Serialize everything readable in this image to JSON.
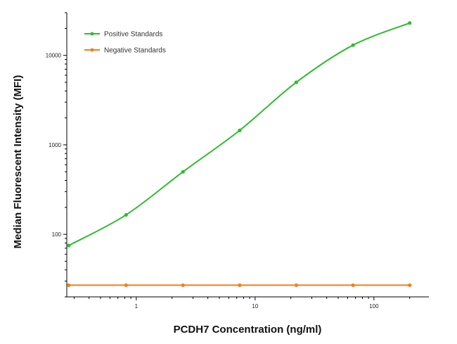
{
  "chart_data": {
    "type": "line",
    "title": "",
    "xlabel": "PCDH7 Concentration (ng/ml)",
    "ylabel": "Median  Fluorescent Intensity  (MFI)",
    "x_scale": "log",
    "y_scale": "log",
    "xlim": [
      0.26,
      290
    ],
    "ylim": [
      20,
      30000
    ],
    "x_ticks": [
      1,
      10,
      100
    ],
    "x_tick_labels": [
      "1",
      "10",
      "100"
    ],
    "y_ticks": [
      100,
      1000,
      10000
    ],
    "y_tick_labels": [
      "100",
      "1000",
      "10000"
    ],
    "grid": false,
    "legend_position": "top-left",
    "series": [
      {
        "name": "Positive Standards",
        "color": "#2ebd2e",
        "x": [
          0.27,
          0.82,
          2.47,
          7.41,
          22.2,
          66.7,
          200
        ],
        "y": [
          75,
          165,
          500,
          1450,
          5000,
          13000,
          23000
        ]
      },
      {
        "name": "Negative Standards",
        "color": "#f07f1a",
        "x": [
          0.27,
          0.82,
          2.47,
          7.41,
          22.2,
          66.7,
          200
        ],
        "y": [
          27,
          27,
          27,
          27,
          27,
          27,
          27
        ]
      }
    ]
  }
}
